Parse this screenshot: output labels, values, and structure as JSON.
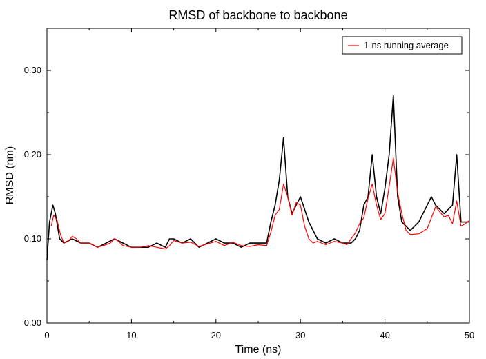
{
  "chart_data": {
    "type": "line",
    "title": "RMSD of backbone to backbone",
    "xlabel": "Time (ns)",
    "ylabel": "RMSD (nm)",
    "xlim": [
      0,
      50
    ],
    "ylim": [
      0,
      0.35
    ],
    "x_ticks": [
      "0",
      "10",
      "20",
      "30",
      "40",
      "50"
    ],
    "y_ticks": [
      "0.00",
      "0.10",
      "0.20",
      "0.30"
    ],
    "grid": false,
    "legend_position": "top-right",
    "series": [
      {
        "name": "",
        "color": "#000000",
        "x": [
          0,
          0.3,
          0.7,
          1.0,
          1.5,
          2,
          3,
          4,
          5,
          6,
          7,
          8,
          9,
          10,
          11,
          12,
          13,
          14,
          14.5,
          15,
          16,
          17,
          18,
          19,
          20,
          21,
          22,
          23,
          24,
          25,
          26,
          26.5,
          27,
          27.5,
          28,
          28.5,
          29,
          29.5,
          30,
          31,
          32,
          33,
          34,
          35,
          36,
          36.5,
          37,
          37.5,
          38,
          38.5,
          39,
          39.5,
          40,
          40.5,
          41,
          41.5,
          42,
          43,
          44,
          45,
          45.5,
          46,
          47,
          48,
          48.5,
          49,
          50
        ],
        "values": [
          0.075,
          0.12,
          0.14,
          0.13,
          0.1,
          0.095,
          0.1,
          0.095,
          0.095,
          0.09,
          0.095,
          0.1,
          0.095,
          0.09,
          0.09,
          0.09,
          0.095,
          0.09,
          0.1,
          0.1,
          0.095,
          0.1,
          0.09,
          0.095,
          0.1,
          0.095,
          0.095,
          0.09,
          0.095,
          0.095,
          0.095,
          0.12,
          0.14,
          0.17,
          0.22,
          0.15,
          0.13,
          0.14,
          0.15,
          0.12,
          0.1,
          0.095,
          0.1,
          0.095,
          0.095,
          0.1,
          0.11,
          0.14,
          0.15,
          0.2,
          0.15,
          0.13,
          0.16,
          0.2,
          0.27,
          0.15,
          0.12,
          0.11,
          0.12,
          0.14,
          0.15,
          0.14,
          0.13,
          0.14,
          0.2,
          0.12,
          0.12
        ]
      },
      {
        "name": "1-ns running average",
        "color": "#ff0000",
        "x": [
          0.5,
          0.8,
          1.2,
          1.6,
          2.0,
          2.5,
          3.0,
          3.5,
          4.0,
          5.0,
          6.0,
          7.0,
          7.5,
          8.0,
          8.5,
          9.0,
          10.0,
          11.0,
          12.0,
          13.0,
          14.0,
          14.5,
          15.0,
          16.0,
          17.0,
          18.0,
          19.0,
          20.0,
          21.0,
          22.0,
          23.0,
          24.0,
          25.0,
          26.0,
          26.5,
          27.0,
          27.5,
          28.0,
          28.5,
          29.0,
          29.5,
          30.0,
          30.5,
          31.0,
          31.5,
          32.0,
          33.0,
          34.0,
          35.0,
          35.5,
          36.0,
          36.5,
          37.0,
          37.5,
          38.0,
          38.5,
          39.0,
          39.5,
          40.0,
          40.5,
          41.0,
          41.5,
          42.0,
          42.5,
          43.0,
          44.0,
          45.0,
          45.5,
          46.0,
          46.5,
          47.0,
          47.5,
          48.0,
          48.5,
          49.0,
          49.5,
          50.0
        ],
        "values": [
          0.115,
          0.128,
          0.122,
          0.105,
          0.095,
          0.097,
          0.103,
          0.1,
          0.095,
          0.095,
          0.09,
          0.093,
          0.095,
          0.1,
          0.097,
          0.092,
          0.09,
          0.09,
          0.092,
          0.09,
          0.088,
          0.092,
          0.098,
          0.095,
          0.096,
          0.091,
          0.094,
          0.097,
          0.092,
          0.096,
          0.092,
          0.091,
          0.093,
          0.092,
          0.108,
          0.128,
          0.135,
          0.165,
          0.15,
          0.128,
          0.143,
          0.14,
          0.115,
          0.1,
          0.095,
          0.097,
          0.093,
          0.097,
          0.095,
          0.093,
          0.1,
          0.107,
          0.118,
          0.125,
          0.148,
          0.165,
          0.14,
          0.123,
          0.13,
          0.162,
          0.196,
          0.155,
          0.13,
          0.11,
          0.105,
          0.106,
          0.112,
          0.125,
          0.138,
          0.132,
          0.126,
          0.128,
          0.118,
          0.145,
          0.115,
          0.118,
          0.122
        ]
      }
    ]
  }
}
